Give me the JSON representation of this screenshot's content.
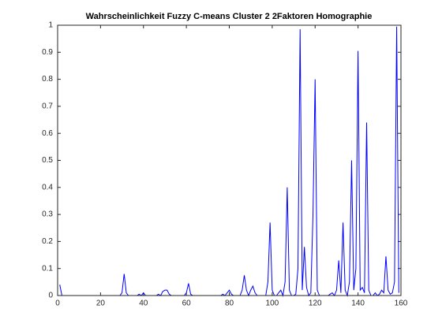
{
  "chart_data": {
    "type": "line",
    "title": "Wahrscheinlichkeit Fuzzy C-means Cluster 2 2Faktoren Homographie",
    "x": [
      1,
      2,
      3,
      4,
      5,
      6,
      7,
      8,
      9,
      10,
      11,
      12,
      13,
      14,
      15,
      16,
      17,
      18,
      19,
      20,
      21,
      22,
      23,
      24,
      25,
      26,
      27,
      28,
      29,
      30,
      31,
      32,
      33,
      34,
      35,
      36,
      37,
      38,
      39,
      40,
      41,
      42,
      43,
      44,
      45,
      46,
      47,
      48,
      49,
      50,
      51,
      52,
      53,
      54,
      55,
      56,
      57,
      58,
      59,
      60,
      61,
      62,
      63,
      64,
      65,
      66,
      67,
      68,
      69,
      70,
      71,
      72,
      73,
      74,
      75,
      76,
      77,
      78,
      79,
      80,
      81,
      82,
      83,
      84,
      85,
      86,
      87,
      88,
      89,
      90,
      91,
      92,
      93,
      94,
      95,
      96,
      97,
      98,
      99,
      100,
      101,
      102,
      103,
      104,
      105,
      106,
      107,
      108,
      109,
      110,
      111,
      112,
      113,
      114,
      115,
      116,
      117,
      118,
      119,
      120,
      121,
      122,
      123,
      124,
      125,
      126,
      127,
      128,
      129,
      130,
      131,
      132,
      133,
      134,
      135,
      136,
      137,
      138,
      139,
      140,
      141,
      142,
      143,
      144,
      145,
      146,
      147,
      148,
      149,
      150,
      151,
      152,
      153,
      154,
      155,
      156,
      157,
      158,
      159
    ],
    "series": [
      {
        "name": "Cluster 2",
        "color": "#0000ff",
        "values": [
          0.04,
          0,
          0,
          0,
          0,
          0,
          0,
          0,
          0,
          0,
          0,
          0,
          0,
          0,
          0,
          0,
          0,
          0,
          0,
          0,
          0,
          0,
          0,
          0,
          0,
          0,
          0,
          0,
          0,
          0.01,
          0.08,
          0.01,
          0,
          0,
          0,
          0,
          0,
          0.005,
          0,
          0.01,
          0,
          0,
          0,
          0,
          0,
          0,
          0.005,
          0,
          0.015,
          0.02,
          0.02,
          0.005,
          0,
          0,
          0,
          0,
          0,
          0,
          0,
          0.01,
          0.045,
          0.005,
          0,
          0,
          0,
          0,
          0,
          0,
          0,
          0,
          0,
          0,
          0,
          0,
          0,
          0,
          0.005,
          0,
          0.01,
          0.02,
          0.005,
          0,
          0,
          0,
          0,
          0.02,
          0.075,
          0.02,
          0,
          0.02,
          0.035,
          0.01,
          0,
          0,
          0,
          0,
          0,
          0.05,
          0.27,
          0.02,
          0,
          0,
          0.01,
          0.02,
          0,
          0.05,
          0.4,
          0.02,
          0,
          0,
          0.005,
          0.1,
          0.985,
          0.02,
          0.18,
          0.03,
          0,
          0.01,
          0.3,
          0.8,
          0.02,
          0,
          0,
          0,
          0,
          0,
          0.005,
          0.01,
          0,
          0.02,
          0.13,
          0.01,
          0.27,
          0.02,
          0,
          0.05,
          0.5,
          0.02,
          0.1,
          0.905,
          0.02,
          0.03,
          0.01,
          0.64,
          0.02,
          0,
          0,
          0.01,
          0,
          0.005,
          0.02,
          0.01,
          0.145,
          0.02,
          0.005,
          0.01,
          0.05,
          0.995,
          0.01
        ]
      }
    ],
    "xlim": [
      0,
      160
    ],
    "xticks": [
      0,
      20,
      40,
      60,
      80,
      100,
      120,
      140,
      160
    ],
    "ylim": [
      0,
      1
    ],
    "yticks": [
      0,
      0.1,
      0.2,
      0.3,
      0.4,
      0.5,
      0.6,
      0.7,
      0.8,
      0.9,
      1
    ],
    "grid": false
  }
}
